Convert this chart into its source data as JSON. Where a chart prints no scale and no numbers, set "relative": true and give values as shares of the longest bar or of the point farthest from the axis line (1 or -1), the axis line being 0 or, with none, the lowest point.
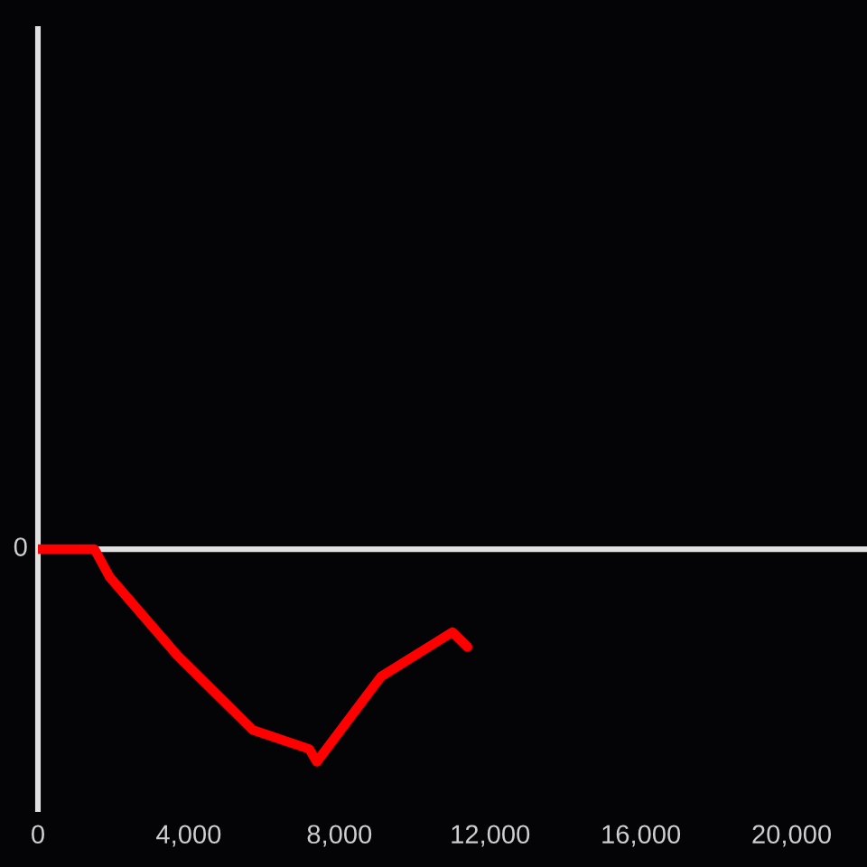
{
  "chart_data": {
    "type": "line",
    "relative": true,
    "x": [
      0,
      1500,
      1900,
      3700,
      5700,
      7200,
      7400,
      9100,
      11000,
      11400
    ],
    "series": [
      {
        "color": "#ff0000",
        "values": [
          0,
          0,
          -0.13,
          -0.5,
          -0.85,
          -0.94,
          -1,
          -0.6,
          -0.39,
          -0.46
        ]
      }
    ],
    "xlim": [
      0,
      22000
    ],
    "xticks": [
      0,
      {
        "value": 4000,
        "label": "4,000"
      },
      {
        "value": 8000,
        "label": "8,000"
      },
      {
        "value": 12000,
        "label": "12,000"
      },
      {
        "value": 16000,
        "label": "16,000"
      },
      {
        "value": 20000,
        "label": "20,000"
      }
    ],
    "ref_lines": [
      {
        "axis": "y",
        "value": 0,
        "label": "0",
        "color": "#e0e0e0"
      }
    ],
    "tick_labels": "x"
  }
}
